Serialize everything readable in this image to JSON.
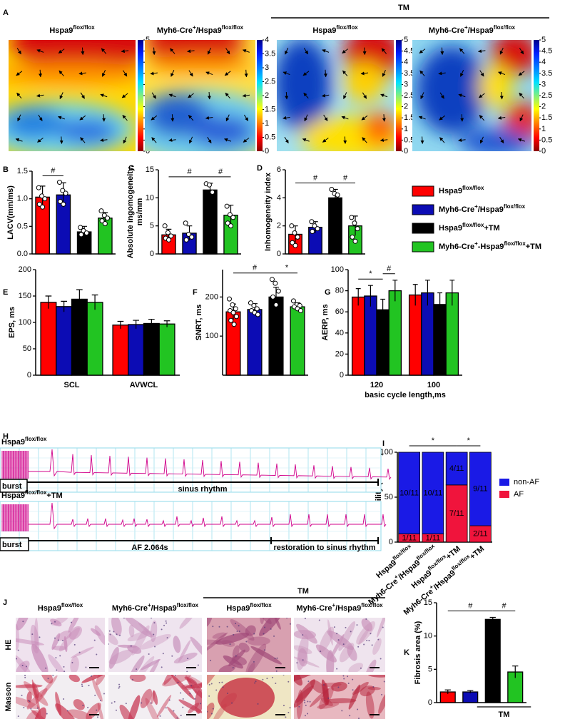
{
  "panel_labels": [
    "A",
    "B",
    "C",
    "D",
    "E",
    "F",
    "G",
    "H",
    "I",
    "J",
    "K"
  ],
  "heatmaps": {
    "tm_label": "TM",
    "maps": [
      {
        "title": "Hspa9flox/flox",
        "cbar_lim": [
          0,
          5
        ],
        "cbar_ticks": [
          0,
          0.5,
          1,
          1.5,
          2,
          2.5,
          3,
          3.5,
          4,
          4.5,
          5
        ]
      },
      {
        "title": "Myh6-Cre+/Hspa9flox/flox",
        "cbar_lim": [
          0,
          4
        ],
        "cbar_ticks": [
          0,
          0.5,
          1,
          1.5,
          2,
          2.5,
          3,
          3.5,
          4
        ]
      },
      {
        "title": "Hspa9flox/flox",
        "cbar_lim": [
          0,
          5
        ],
        "cbar_ticks": [
          0,
          0.5,
          1,
          1.5,
          2,
          2.5,
          3,
          3.5,
          4,
          4.5,
          5
        ]
      },
      {
        "title": "Myh6-Cre+/Hspa9flox/flox",
        "cbar_lim": [
          0,
          5
        ],
        "cbar_ticks": [
          0,
          0.5,
          1,
          1.5,
          2,
          2.5,
          3,
          3.5,
          4,
          4.5,
          5
        ]
      }
    ]
  },
  "legend": {
    "series": [
      {
        "name": "Hspa9flox/flox",
        "color": "#ff0000"
      },
      {
        "name": "Myh6-Cre+/Hspa9flox/flox",
        "color": "#0c0cb4"
      },
      {
        "name": "Hspa9flox/flox+TM",
        "color": "#000000"
      },
      {
        "name": "Myh6-Cre+-Hspa9flox/flox+TM",
        "color": "#22c422"
      }
    ]
  },
  "chart_data": [
    {
      "type": "bar",
      "ylabel": "LACV(mm/ms)",
      "values": [
        1.03,
        1.07,
        0.4,
        0.65
      ],
      "errors": [
        0.2,
        0.22,
        0.1,
        0.1
      ],
      "points": [
        [
          1.2,
          1.05,
          1.0,
          0.9,
          0.85
        ],
        [
          1.3,
          1.15,
          1.1,
          0.95,
          0.9
        ],
        [
          0.48,
          0.42,
          0.38,
          0.35
        ],
        [
          0.78,
          0.7,
          0.65,
          0.6,
          0.55
        ]
      ],
      "colors": [
        "#ff0000",
        "#0c0cb4",
        "#000000",
        "#22c422"
      ],
      "ylim": [
        0,
        1.5
      ],
      "yticks": [
        {
          "value": 0,
          "label": "0.0"
        },
        0.5,
        {
          "value": 1,
          "label": "1.0"
        },
        1.5
      ],
      "annotations": [
        {
          "text": "#",
          "bars": [
            0,
            1
          ]
        }
      ]
    },
    {
      "type": "bar",
      "ylabel": [
        "Absolute ingomogeneity,",
        "ms/mm"
      ],
      "values": [
        3.4,
        3.7,
        11.4,
        6.9
      ],
      "errors": [
        1,
        1.3,
        1.2,
        1.8
      ],
      "points": [
        [
          5,
          3.8,
          3.2,
          2.8,
          2.5
        ],
        [
          5.5,
          3.5,
          3,
          2.5
        ],
        [
          12.5,
          12.3,
          11
        ],
        [
          8.5,
          7,
          6.5,
          5.5,
          5
        ]
      ],
      "colors": [
        "#ff0000",
        "#0c0cb4",
        "#000000",
        "#22c422"
      ],
      "ylim": [
        0,
        15
      ],
      "yticks": [
        0,
        5,
        10,
        15
      ],
      "annotations": [
        {
          "text": "#",
          "bars": [
            0,
            2
          ]
        },
        {
          "text": "#",
          "bars": [
            2,
            3
          ]
        }
      ]
    },
    {
      "type": "bar",
      "ylabel": "Inhomogeneity index",
      "values": [
        1.4,
        1.9,
        4.0,
        2.0
      ],
      "errors": [
        0.6,
        0.4,
        0.6,
        0.7
      ],
      "points": [
        [
          2,
          1.5,
          1.2,
          0.8,
          0.6
        ],
        [
          2.3,
          2,
          1.8,
          1.6
        ],
        [
          4.6,
          4.3,
          4.2
        ],
        [
          2.6,
          2.2,
          1.8,
          1.2,
          0.9
        ]
      ],
      "colors": [
        "#ff0000",
        "#0c0cb4",
        "#000000",
        "#22c422"
      ],
      "ylim": [
        0,
        6
      ],
      "yticks": [
        0,
        2,
        4,
        6
      ],
      "annotations": [
        {
          "text": "#",
          "bars": [
            0,
            2
          ]
        },
        {
          "text": "#",
          "bars": [
            2,
            3
          ]
        }
      ]
    },
    {
      "type": "bar",
      "ylabel": "EPS, ms",
      "categories": [
        "SCL",
        "AVWCL"
      ],
      "series": [
        {
          "color": "#ff0000",
          "values": [
            138,
            95
          ],
          "errors": [
            12,
            7
          ]
        },
        {
          "color": "#0c0cb4",
          "values": [
            130,
            96
          ],
          "errors": [
            10,
            8
          ]
        },
        {
          "color": "#000000",
          "values": [
            144,
            98
          ],
          "errors": [
            18,
            8
          ]
        },
        {
          "color": "#22c422",
          "values": [
            138,
            97
          ],
          "errors": [
            14,
            6
          ]
        }
      ],
      "ylim": [
        0,
        200
      ],
      "yticks": [
        0,
        50,
        100,
        150,
        200
      ]
    },
    {
      "type": "bar",
      "ylabel": "SNRT, ms",
      "values": [
        162,
        168,
        200,
        175
      ],
      "errors": [
        20,
        15,
        25,
        10
      ],
      "points": [
        [
          195,
          180,
          170,
          165,
          160,
          150,
          140,
          130
        ],
        [
          185,
          178,
          170,
          165,
          160,
          155
        ],
        [
          245,
          235,
          215,
          200,
          180
        ],
        [
          190,
          180,
          178,
          175,
          170,
          165
        ]
      ],
      "colors": [
        "#ff0000",
        "#0c0cb4",
        "#000000",
        "#22c422"
      ],
      "ylim": [
        0,
        270
      ],
      "yticks": [
        100,
        200
      ],
      "annotations": [
        {
          "text": "#",
          "bars": [
            0,
            2
          ]
        },
        {
          "text": "*",
          "bars": [
            2,
            3
          ]
        }
      ]
    },
    {
      "type": "bar",
      "ylabel": "AERP, ms",
      "xlabel": "basic cycle length,ms",
      "categories": [
        "120",
        "100"
      ],
      "series": [
        {
          "color": "#ff0000",
          "values": [
            74,
            76
          ],
          "errors": [
            8,
            10
          ]
        },
        {
          "color": "#0c0cb4",
          "values": [
            75,
            78
          ],
          "errors": [
            10,
            12
          ]
        },
        {
          "color": "#000000",
          "values": [
            62,
            67
          ],
          "errors": [
            10,
            11
          ]
        },
        {
          "color": "#22c422",
          "values": [
            80,
            78
          ],
          "errors": [
            10,
            12
          ]
        }
      ],
      "ylim": [
        0,
        100
      ],
      "yticks": [
        0,
        20,
        40,
        60,
        80,
        100
      ],
      "annotations": [
        {
          "text": "*",
          "bars": [
            0,
            2
          ]
        },
        {
          "text": "#",
          "bars": [
            2,
            3
          ]
        }
      ]
    },
    {
      "type": "stacked_bar",
      "ylabel": "AF inducibility (% mice)",
      "categories": [
        "Hspa9flox/flox",
        "Myh6-Cre+/Hspa9flox/flox",
        "Hspa9flox/flox+TM",
        "Myh6-Cre+/Hspa9flox/flox+TM"
      ],
      "series": [
        {
          "name": "non-AF",
          "color": "#1a1ae6",
          "values": [
            90.9,
            90.9,
            36.4,
            81.8
          ],
          "value_labels": [
            "10/11",
            "10/11",
            "4/11",
            "9/11"
          ]
        },
        {
          "name": "AF",
          "color": "#f0143c",
          "values": [
            9.1,
            9.1,
            63.6,
            18.2
          ],
          "value_labels": [
            "1/11",
            "1/11",
            "7/11",
            "2/11"
          ]
        }
      ],
      "ylim": [
        0,
        100
      ],
      "yticks": [
        0,
        50,
        100
      ],
      "annotations": [
        {
          "text": "*",
          "bars": [
            0,
            2
          ]
        },
        {
          "text": "*",
          "bars": [
            2,
            3
          ]
        }
      ]
    },
    {
      "type": "bar",
      "ylabel": "Fibrosis area (%)",
      "values": [
        1.6,
        1.6,
        12.5,
        4.6
      ],
      "errors": [
        0.3,
        0.2,
        0.3,
        0.9
      ],
      "colors": [
        "#ff0000",
        "#0c0cb4",
        "#000000",
        "#22c422"
      ],
      "ylim": [
        0,
        15
      ],
      "yticks": [
        0,
        5,
        10,
        15
      ],
      "annotations": [
        {
          "text": "#",
          "bars": [
            0,
            2
          ]
        },
        {
          "text": "#",
          "bars": [
            2,
            3
          ]
        }
      ],
      "group_label": {
        "text": "TM",
        "bars": [
          2,
          3
        ]
      }
    }
  ],
  "ecg": {
    "traces": [
      {
        "title": "Hspa9flox/flox",
        "segments": [
          "burst",
          "sinus rhythm"
        ]
      },
      {
        "title": "Hspa9flox/flox+TM",
        "segments": [
          "burst",
          "AF 2.064s",
          "restoration to sinus rhythm"
        ]
      }
    ]
  },
  "histology": {
    "tm_label": "TM",
    "columns": [
      "Hspa9flox/flox",
      "Myh6-Cre+/Hspa9flox/flox",
      "Hspa9flox/flox",
      "Myh6-Cre+/Hspa9flox/flox"
    ],
    "rows": [
      "HE",
      "Masson"
    ]
  }
}
